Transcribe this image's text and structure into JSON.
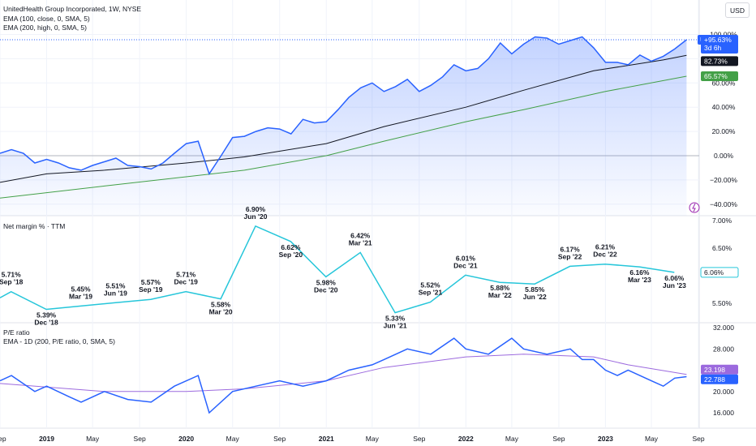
{
  "header": {
    "title": "UnitedHealth Group Incorporated, 1W, NYSE",
    "indicators": [
      "EMA (100, close, 0, SMA, 5)",
      "EMA (200, high, 0, SMA, 5)"
    ],
    "currency": "USD"
  },
  "colors": {
    "price": "#2962ff",
    "ema100": "#131722",
    "ema200": "#43a047",
    "margin": "#26c6da",
    "pe": "#2962ff",
    "pe_ema": "#9c6ade",
    "grid": "#f0f3fa"
  },
  "chart_data": [
    {
      "type": "area",
      "name": "price_pane",
      "ylabel_unit": "%",
      "ylim": [
        -45,
        110
      ],
      "yticks": [
        100,
        80,
        60,
        40,
        20,
        0,
        -20,
        -40
      ],
      "ytick_labels": [
        "100.00%",
        "80.00%",
        "60.00%",
        "40.00%",
        "20.00%",
        "0.00%",
        "−20.00%",
        "−40.00%"
      ],
      "x_range": [
        "2018-09-01",
        "2023-09-20"
      ],
      "series": [
        {
          "name": "UNH",
          "points": [
            [
              "2018-09",
              2
            ],
            [
              "2018-10",
              5
            ],
            [
              "2018-11",
              2
            ],
            [
              "2018-12",
              -6
            ],
            [
              "2019-01",
              -3
            ],
            [
              "2019-02",
              -6
            ],
            [
              "2019-03",
              -10
            ],
            [
              "2019-04",
              -12
            ],
            [
              "2019-05",
              -8
            ],
            [
              "2019-06",
              -5
            ],
            [
              "2019-07",
              -2
            ],
            [
              "2019-08",
              -8
            ],
            [
              "2019-09",
              -9
            ],
            [
              "2019-10",
              -11
            ],
            [
              "2019-11",
              -6
            ],
            [
              "2019-12",
              2
            ],
            [
              "2020-01",
              10
            ],
            [
              "2020-02",
              12
            ],
            [
              "2020-03",
              -15
            ],
            [
              "2020-04",
              0
            ],
            [
              "2020-05",
              15
            ],
            [
              "2020-06",
              16
            ],
            [
              "2020-07",
              20
            ],
            [
              "2020-08",
              23
            ],
            [
              "2020-09",
              22
            ],
            [
              "2020-10",
              18
            ],
            [
              "2020-11",
              30
            ],
            [
              "2020-12",
              27
            ],
            [
              "2021-01",
              28
            ],
            [
              "2021-02",
              38
            ],
            [
              "2021-03",
              48
            ],
            [
              "2021-04",
              56
            ],
            [
              "2021-05",
              60
            ],
            [
              "2021-06",
              53
            ],
            [
              "2021-07",
              57
            ],
            [
              "2021-08",
              63
            ],
            [
              "2021-09",
              53
            ],
            [
              "2021-10",
              58
            ],
            [
              "2021-11",
              65
            ],
            [
              "2021-12",
              75
            ],
            [
              "2022-01",
              70
            ],
            [
              "2022-02",
              72
            ],
            [
              "2022-03",
              80
            ],
            [
              "2022-04",
              93
            ],
            [
              "2022-05",
              84
            ],
            [
              "2022-06",
              92
            ],
            [
              "2022-07",
              98
            ],
            [
              "2022-08",
              97
            ],
            [
              "2022-09",
              92
            ],
            [
              "2022-10",
              95
            ],
            [
              "2022-11",
              98
            ],
            [
              "2022-12",
              89
            ],
            [
              "2023-01",
              77
            ],
            [
              "2023-02",
              77
            ],
            [
              "2023-03",
              75
            ],
            [
              "2023-04",
              83
            ],
            [
              "2023-05",
              78
            ],
            [
              "2023-06",
              82
            ],
            [
              "2023-07",
              88
            ],
            [
              "2023-08",
              95.63
            ]
          ]
        },
        {
          "name": "EMA 100",
          "points": [
            [
              "2018-09",
              -22
            ],
            [
              "2019-01",
              -15
            ],
            [
              "2019-06",
              -12
            ],
            [
              "2020-01",
              -6
            ],
            [
              "2020-06",
              -1
            ],
            [
              "2021-01",
              10
            ],
            [
              "2021-06",
              24
            ],
            [
              "2022-01",
              40
            ],
            [
              "2022-06",
              54
            ],
            [
              "2022-12",
              70
            ],
            [
              "2023-06",
              79
            ],
            [
              "2023-08",
              82.73
            ]
          ]
        },
        {
          "name": "EMA 200",
          "points": [
            [
              "2018-09",
              -35
            ],
            [
              "2019-06",
              -25
            ],
            [
              "2020-06",
              -12
            ],
            [
              "2021-01",
              0
            ],
            [
              "2021-06",
              12
            ],
            [
              "2022-01",
              28
            ],
            [
              "2022-06",
              38
            ],
            [
              "2023-01",
              53
            ],
            [
              "2023-08",
              65.57
            ]
          ]
        }
      ],
      "price_badge": {
        "symbol": "UNH",
        "value": "+95.63%",
        "countdown": "3d 6h"
      },
      "ema100_badge": "82.73%",
      "ema200_badge": "65.57%"
    },
    {
      "type": "line",
      "name": "net_margin_pane",
      "title": "Net margin % · TTM",
      "ylim": [
        5.3,
        7.05
      ],
      "yticks": [
        7.0,
        6.5,
        5.5
      ],
      "ytick_labels": [
        "7.00%",
        "6.50%",
        "5.50%"
      ],
      "last_badge": "6.06%",
      "points": [
        {
          "date": "2018-09-30",
          "value": 5.71,
          "label": [
            "5.71%",
            "Sep '18"
          ]
        },
        {
          "date": "2018-12-31",
          "value": 5.39,
          "label": [
            "5.39%",
            "Dec '18"
          ]
        },
        {
          "date": "2019-03-31",
          "value": 5.45,
          "label": [
            "5.45%",
            "Mar '19"
          ]
        },
        {
          "date": "2019-06-30",
          "value": 5.51,
          "label": [
            "5.51%",
            "Jun '19"
          ]
        },
        {
          "date": "2019-09-30",
          "value": 5.57,
          "label": [
            "5.57%",
            "Sep '19"
          ]
        },
        {
          "date": "2019-12-31",
          "value": 5.71,
          "label": [
            "5.71%",
            "Dec '19"
          ]
        },
        {
          "date": "2020-03-31",
          "value": 5.58,
          "label": [
            "5.58%",
            "Mar '20"
          ]
        },
        {
          "date": "2020-06-30",
          "value": 6.9,
          "label": [
            "6.90%",
            "Jun '20"
          ]
        },
        {
          "date": "2020-09-30",
          "value": 6.62,
          "label": [
            "6.62%",
            "Sep '20"
          ]
        },
        {
          "date": "2020-12-31",
          "value": 5.98,
          "label": [
            "5.98%",
            "Dec '20"
          ]
        },
        {
          "date": "2021-03-31",
          "value": 6.42,
          "label": [
            "6.42%",
            "Mar '21"
          ]
        },
        {
          "date": "2021-06-30",
          "value": 5.33,
          "label": [
            "5.33%",
            "Jun '21"
          ]
        },
        {
          "date": "2021-09-30",
          "value": 5.52,
          "label": [
            "5.52%",
            "Sep '21"
          ]
        },
        {
          "date": "2021-12-31",
          "value": 6.01,
          "label": [
            "6.01%",
            "Dec '21"
          ]
        },
        {
          "date": "2022-03-31",
          "value": 5.88,
          "label": [
            "5.88%",
            "Mar '22"
          ]
        },
        {
          "date": "2022-06-30",
          "value": 5.85,
          "label": [
            "5.85%",
            "Jun '22"
          ]
        },
        {
          "date": "2022-09-30",
          "value": 6.17,
          "label": [
            "6.17%",
            "Sep '22"
          ]
        },
        {
          "date": "2022-12-31",
          "value": 6.21,
          "label": [
            "6.21%",
            "Dec '22"
          ]
        },
        {
          "date": "2023-03-31",
          "value": 6.16,
          "label": [
            "6.16%",
            "Mar '23"
          ]
        },
        {
          "date": "2023-06-30",
          "value": 6.06,
          "label": [
            "6.06%",
            "Jun '23"
          ]
        }
      ]
    },
    {
      "type": "line",
      "name": "pe_pane",
      "title": "P/E ratio",
      "subtitle": "EMA - 1D (200, P/E ratio, 0, SMA, 5)",
      "ylim": [
        14.5,
        32.5
      ],
      "yticks": [
        32,
        28,
        24,
        20,
        16
      ],
      "ytick_labels": [
        "32.000",
        "28.000",
        "24.000",
        "20.000",
        "16.000"
      ],
      "last_badge_pe": "22.788",
      "last_badge_ema": "23.198",
      "series": [
        {
          "name": "P/E ratio",
          "points": [
            [
              "2018-09",
              22
            ],
            [
              "2018-10",
              23
            ],
            [
              "2018-12",
              20
            ],
            [
              "2019-01",
              21
            ],
            [
              "2019-03",
              19
            ],
            [
              "2019-04",
              18
            ],
            [
              "2019-06",
              20
            ],
            [
              "2019-08",
              18.5
            ],
            [
              "2019-10",
              18
            ],
            [
              "2019-12",
              21
            ],
            [
              "2020-02",
              23
            ],
            [
              "2020-03",
              16
            ],
            [
              "2020-05",
              20
            ],
            [
              "2020-07",
              21
            ],
            [
              "2020-09",
              22
            ],
            [
              "2020-11",
              21
            ],
            [
              "2021-01",
              22
            ],
            [
              "2021-03",
              24
            ],
            [
              "2021-05",
              25
            ],
            [
              "2021-06",
              26
            ],
            [
              "2021-08",
              28
            ],
            [
              "2021-10",
              27
            ],
            [
              "2021-12",
              30
            ],
            [
              "2022-01",
              28
            ],
            [
              "2022-03",
              27
            ],
            [
              "2022-05",
              30
            ],
            [
              "2022-06",
              28
            ],
            [
              "2022-08",
              27
            ],
            [
              "2022-10",
              28
            ],
            [
              "2022-11",
              26
            ],
            [
              "2022-12",
              26
            ],
            [
              "2023-01",
              24
            ],
            [
              "2023-02",
              23
            ],
            [
              "2023-03",
              24
            ],
            [
              "2023-05",
              22
            ],
            [
              "2023-06",
              21
            ],
            [
              "2023-07",
              22.5
            ],
            [
              "2023-08",
              22.788
            ]
          ]
        },
        {
          "name": "EMA 200",
          "points": [
            [
              "2018-09",
              21.5
            ],
            [
              "2019-06",
              20
            ],
            [
              "2020-01",
              20
            ],
            [
              "2020-06",
              20.5
            ],
            [
              "2021-01",
              22
            ],
            [
              "2021-06",
              24.5
            ],
            [
              "2022-01",
              26.5
            ],
            [
              "2022-06",
              27
            ],
            [
              "2022-12",
              26.5
            ],
            [
              "2023-03",
              25
            ],
            [
              "2023-08",
              23.198
            ]
          ]
        }
      ]
    }
  ],
  "x_axis": {
    "ticks": [
      {
        "date": "2018-09-01",
        "label": "Sep",
        "bold": false
      },
      {
        "date": "2019-01-01",
        "label": "2019",
        "bold": true
      },
      {
        "date": "2019-05-01",
        "label": "May",
        "bold": false
      },
      {
        "date": "2019-09-01",
        "label": "Sep",
        "bold": false
      },
      {
        "date": "2020-01-01",
        "label": "2020",
        "bold": true
      },
      {
        "date": "2020-05-01",
        "label": "May",
        "bold": false
      },
      {
        "date": "2020-09-01",
        "label": "Sep",
        "bold": false
      },
      {
        "date": "2021-01-01",
        "label": "2021",
        "bold": true
      },
      {
        "date": "2021-05-01",
        "label": "May",
        "bold": false
      },
      {
        "date": "2021-09-01",
        "label": "Sep",
        "bold": false
      },
      {
        "date": "2022-01-01",
        "label": "2022",
        "bold": true
      },
      {
        "date": "2022-05-01",
        "label": "May",
        "bold": false
      },
      {
        "date": "2022-09-01",
        "label": "Sep",
        "bold": false
      },
      {
        "date": "2023-01-01",
        "label": "2023",
        "bold": true
      },
      {
        "date": "2023-05-01",
        "label": "May",
        "bold": false
      },
      {
        "date": "2023-09-01",
        "label": "Sep",
        "bold": false
      }
    ]
  }
}
